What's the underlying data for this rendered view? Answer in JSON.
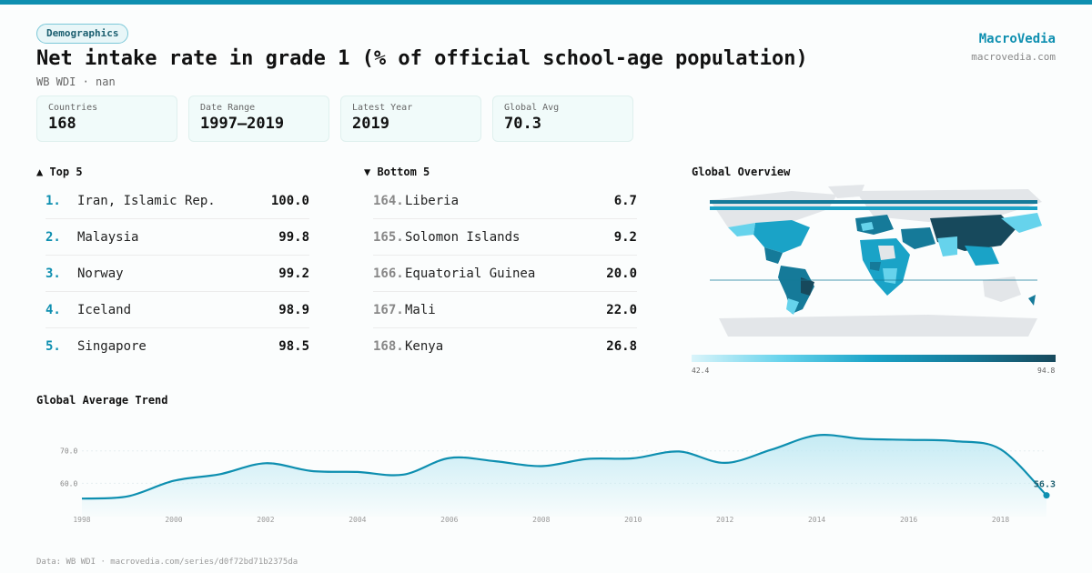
{
  "header": {
    "category": "Demographics",
    "title": "Net intake rate in grade 1 (% of official school-age population)",
    "subtitle": "WB WDI · nan",
    "brand": "MacroVedia",
    "brand_url": "macrovedia.com"
  },
  "stats": [
    {
      "label": "Countries",
      "value": "168"
    },
    {
      "label": "Date Range",
      "value": "1997–2019"
    },
    {
      "label": "Latest Year",
      "value": "2019"
    },
    {
      "label": "Global Avg",
      "value": "70.3"
    }
  ],
  "top5": {
    "heading": "▲ Top 5",
    "rows": [
      {
        "rank": "1.",
        "name": "Iran, Islamic Rep.",
        "value": "100.0"
      },
      {
        "rank": "2.",
        "name": "Malaysia",
        "value": "99.8"
      },
      {
        "rank": "3.",
        "name": "Norway",
        "value": "99.2"
      },
      {
        "rank": "4.",
        "name": "Iceland",
        "value": "98.9"
      },
      {
        "rank": "5.",
        "name": "Singapore",
        "value": "98.5"
      }
    ]
  },
  "bottom5": {
    "heading": "▼ Bottom 5",
    "rows": [
      {
        "rank": "164.",
        "name": "Liberia",
        "value": "6.7"
      },
      {
        "rank": "165.",
        "name": "Solomon Islands",
        "value": "9.2"
      },
      {
        "rank": "166.",
        "name": "Equatorial Guinea",
        "value": "20.0"
      },
      {
        "rank": "167.",
        "name": "Mali",
        "value": "22.0"
      },
      {
        "rank": "168.",
        "name": "Kenya",
        "value": "26.8"
      }
    ]
  },
  "map": {
    "heading": "Global Overview",
    "legend_min": "42.4",
    "legend_max": "94.8",
    "colors": [
      "#d9f4fa",
      "#66d3ec",
      "#1aa3c7",
      "#157a99",
      "#17495c"
    ]
  },
  "trend": {
    "heading": "Global Average Trend"
  },
  "footer": "Data: WB WDI · macrovedia.com/series/d0f72bd71b2375da",
  "chart_data": {
    "type": "area",
    "title": "Global Average Trend",
    "x": [
      1998,
      1999,
      2000,
      2001,
      2002,
      2003,
      2004,
      2005,
      2006,
      2007,
      2008,
      2009,
      2010,
      2011,
      2012,
      2013,
      2014,
      2015,
      2016,
      2017,
      2018,
      2019
    ],
    "values": [
      55.3,
      56.0,
      60.8,
      62.8,
      66.2,
      63.8,
      63.5,
      62.7,
      67.8,
      66.8,
      65.3,
      67.5,
      67.7,
      69.8,
      66.3,
      70.3,
      74.8,
      73.7,
      73.4,
      73.0,
      70.5,
      56.3
    ],
    "ylim": [
      52,
      80
    ],
    "yticks": [
      60.0,
      70.0
    ],
    "xticks": [
      1998,
      2000,
      2002,
      2004,
      2006,
      2008,
      2010,
      2012,
      2014,
      2016,
      2018
    ],
    "last_label": "56.3",
    "line_color": "#0e8fb0",
    "grid": false
  }
}
